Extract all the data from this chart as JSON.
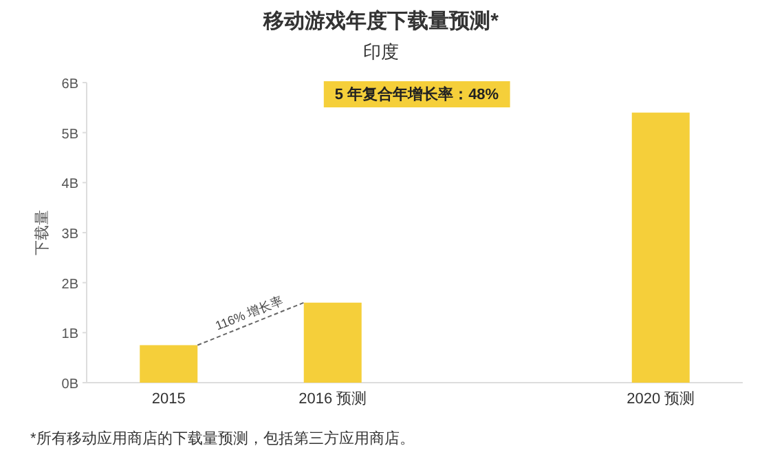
{
  "chart_data": {
    "type": "bar",
    "title": "移动游戏年度下载量预测*",
    "subtitle": "印度",
    "ylabel": "下载量",
    "categories": [
      "2015",
      "2016 预测",
      null,
      "2020 预测"
    ],
    "values": [
      0.75,
      1.6,
      null,
      5.4
    ],
    "color": "#f5cf3a",
    "ylim": [
      0,
      6
    ],
    "yticks": [
      {
        "value": 0,
        "label": "0B"
      },
      {
        "value": 1,
        "label": "1B"
      },
      {
        "value": 2,
        "label": "2B"
      },
      {
        "value": 3,
        "label": "3B"
      },
      {
        "value": 4,
        "label": "4B"
      },
      {
        "value": 5,
        "label": "5B"
      },
      {
        "value": 6,
        "label": "6B"
      }
    ],
    "grid": false,
    "annotations": [
      "5 年复合年增长率：48%",
      "116% 增长率",
      "*所有移动应用商店的下载量预测，包括第三方应用商店。"
    ]
  }
}
